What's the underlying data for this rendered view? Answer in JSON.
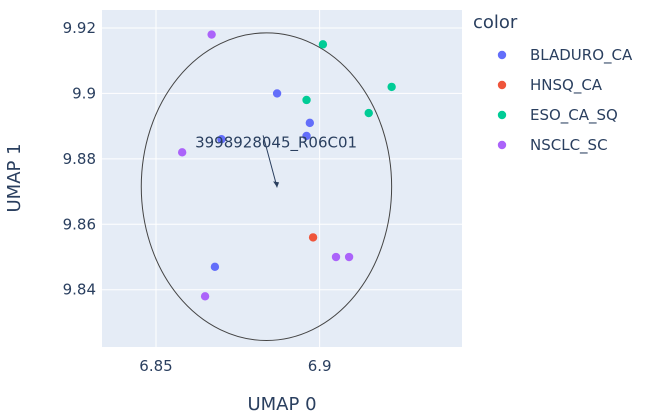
{
  "chart_data": {
    "type": "scatter",
    "xlabel": "UMAP 0",
    "ylabel": "UMAP 1",
    "xlim": [
      6.8335,
      6.9435
    ],
    "ylim": [
      9.8225,
      9.9255
    ],
    "xticks": [
      6.85,
      6.9
    ],
    "xtick_labels": [
      "6.85",
      "6.9"
    ],
    "yticks": [
      9.84,
      9.86,
      9.88,
      9.9,
      9.92
    ],
    "ytick_labels": [
      "9.84",
      "9.86",
      "9.88",
      "9.9",
      "9.92"
    ],
    "grid": true,
    "legend": {
      "title": "color",
      "placement": "right"
    },
    "series": [
      {
        "name": "BLADURO_CA",
        "color": "#636efa",
        "points": [
          [
            6.887,
            9.9
          ],
          [
            6.897,
            9.891
          ],
          [
            6.896,
            9.887
          ],
          [
            6.87,
            9.886
          ],
          [
            6.868,
            9.847
          ]
        ]
      },
      {
        "name": "HNSQ_CA",
        "color": "#ef553b",
        "points": [
          [
            6.898,
            9.856
          ]
        ]
      },
      {
        "name": "ESO_CA_SQ",
        "color": "#00cc96",
        "points": [
          [
            6.901,
            9.915
          ],
          [
            6.896,
            9.898
          ],
          [
            6.915,
            9.894
          ],
          [
            6.922,
            9.902
          ]
        ]
      },
      {
        "name": "NSCLC_SC",
        "color": "#ab63fa",
        "points": [
          [
            6.867,
            9.918
          ],
          [
            6.858,
            9.882
          ],
          [
            6.905,
            9.85
          ],
          [
            6.909,
            9.85
          ],
          [
            6.865,
            9.838
          ]
        ]
      }
    ],
    "annotations": [
      {
        "text": "3998928045_R06C01",
        "x": 6.887,
        "y": 9.8713
      }
    ],
    "shapes": [
      {
        "type": "circle",
        "x0": 6.8455,
        "x1": 6.922,
        "y0": 9.8245,
        "y1": 9.9185
      }
    ]
  }
}
